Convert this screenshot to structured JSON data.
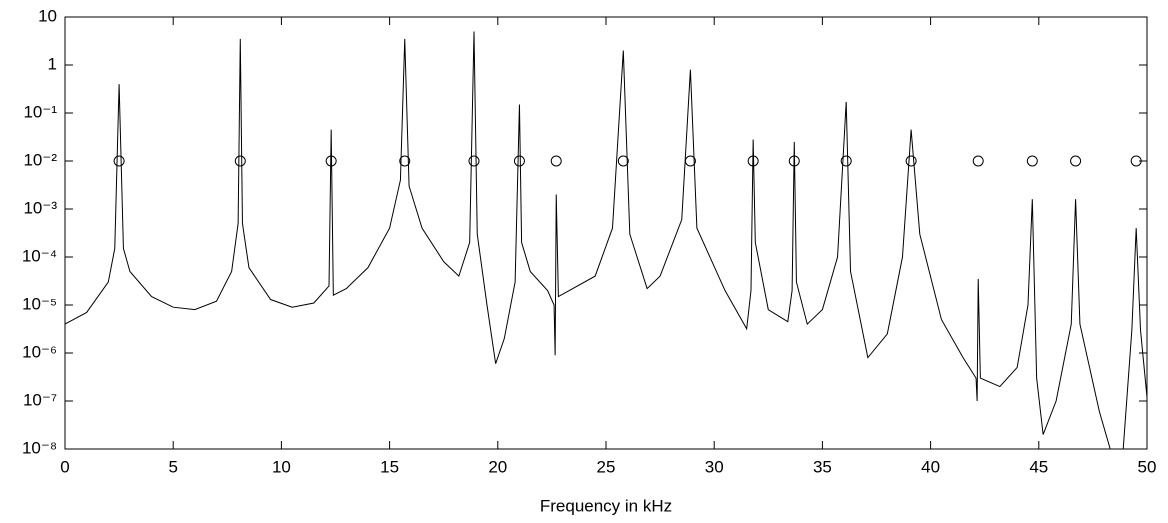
{
  "chart_data": {
    "type": "line",
    "xlabel": "Frequency in kHz",
    "yscale": "log",
    "xlim": [
      0,
      50
    ],
    "xticks": [
      0,
      5,
      10,
      15,
      20,
      25,
      30,
      35,
      40,
      45,
      50
    ],
    "ylim": [
      1e-08,
      10
    ],
    "yticks": [
      {
        "value": 1e-08,
        "label": "10⁻⁸"
      },
      {
        "value": 1e-07,
        "label": "10⁻⁷"
      },
      {
        "value": 1e-06,
        "label": "10⁻⁶"
      },
      {
        "value": 1e-05,
        "label": "10⁻⁵"
      },
      {
        "value": 0.0001,
        "label": "10⁻⁴"
      },
      {
        "value": 0.001,
        "label": "10⁻³"
      },
      {
        "value": 0.01,
        "label": "10⁻²"
      },
      {
        "value": 0.1,
        "label": "10⁻¹"
      },
      1,
      10
    ],
    "series": [
      {
        "type": "line",
        "color": "#000000",
        "x": [
          0,
          1,
          2,
          2.3,
          2.5,
          2.7,
          3,
          4,
          5,
          6,
          7,
          7.7,
          8.0,
          8.1,
          8.2,
          8.5,
          9.5,
          10.5,
          11.5,
          12.2,
          12.3,
          12.4,
          13,
          14,
          15,
          15.5,
          15.7,
          15.9,
          16.5,
          17.5,
          18.2,
          18.7,
          18.9,
          19.05,
          19.5,
          19.9,
          20.3,
          20.8,
          21.0,
          21.1,
          21.5,
          22.3,
          22.6,
          22.65,
          22.7,
          22.8,
          23.3,
          24.5,
          25.3,
          25.8,
          26.1,
          26.9,
          27.5,
          28.5,
          28.9,
          29.2,
          30.5,
          31.5,
          31.7,
          31.8,
          31.9,
          32.5,
          33.4,
          33.6,
          33.7,
          33.8,
          34.3,
          35,
          35.7,
          36.1,
          36.3,
          37.1,
          38,
          38.7,
          39.1,
          39.5,
          40.5,
          41.5,
          42.1,
          42.15,
          42.2,
          42.3,
          43.2,
          44,
          44.5,
          44.7,
          44.9,
          45.2,
          45.8,
          46.5,
          46.7,
          46.9,
          47.8,
          48.3,
          48.6,
          48.9,
          49.3,
          49.5,
          49.7,
          50
        ],
        "values": [
          4e-06,
          7e-06,
          3e-05,
          0.00015,
          0.4,
          0.00015,
          5e-05,
          1.5e-05,
          9e-06,
          8e-06,
          1.2e-05,
          5e-05,
          0.0005,
          3.5,
          0.0005,
          6e-05,
          1.3e-05,
          9e-06,
          1.1e-05,
          2.5e-05,
          0.045,
          1.6e-05,
          2.2e-05,
          6e-05,
          0.0004,
          0.004,
          3.5,
          0.003,
          0.0004,
          8e-05,
          4e-05,
          0.0002,
          5,
          0.0003,
          1e-05,
          6e-07,
          2e-06,
          3e-05,
          0.15,
          0.0002,
          5e-05,
          2e-05,
          1e-05,
          9e-07,
          0.002,
          1.5e-05,
          2e-05,
          4e-05,
          0.0004,
          2,
          0.0003,
          2.2e-05,
          4e-05,
          0.0006,
          0.8,
          0.0004,
          2e-05,
          3.2e-06,
          2e-05,
          0.028,
          0.0002,
          8e-06,
          4.5e-06,
          2e-05,
          0.025,
          3e-05,
          4e-06,
          8e-06,
          0.0001,
          0.17,
          5e-05,
          8e-07,
          2.5e-06,
          0.0001,
          0.045,
          0.0003,
          5e-06,
          8e-07,
          3e-07,
          1e-07,
          3.5e-05,
          3e-07,
          2e-07,
          5e-07,
          1e-05,
          0.0016,
          3e-07,
          2e-08,
          1e-07,
          4e-06,
          0.0016,
          4e-06,
          6e-08,
          1e-08,
          4e-09,
          1e-08,
          3e-06,
          0.0004,
          3e-06,
          1.2e-07
        ]
      },
      {
        "type": "scatter",
        "color": "#000000",
        "x": [
          2.5,
          8.1,
          12.3,
          15.7,
          18.9,
          21.0,
          22.7,
          25.8,
          28.9,
          31.8,
          33.7,
          36.1,
          39.1,
          42.2,
          44.7,
          46.7,
          49.5
        ],
        "values": [
          0.01,
          0.01,
          0.01,
          0.01,
          0.01,
          0.01,
          0.01,
          0.01,
          0.01,
          0.01,
          0.01,
          0.01,
          0.01,
          0.01,
          0.01,
          0.01,
          0.01
        ]
      }
    ]
  }
}
